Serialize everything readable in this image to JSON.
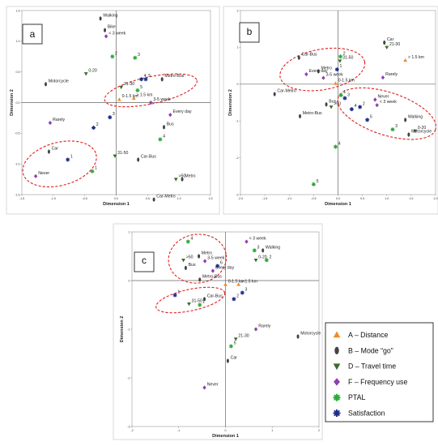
{
  "chart_data": [
    {
      "type": "scatter",
      "panel_label": "a",
      "xlabel": "Dimension 1",
      "ylabel": "Dimension 2",
      "xlim": [
        -1.5,
        1.5
      ],
      "ylim": [
        -1.5,
        1.5
      ],
      "xticks": [
        -1.5,
        -1.0,
        -0.5,
        0.0,
        0.5,
        1.0,
        1.5
      ],
      "xtick_labels": [
        "-1.5",
        "-1.0",
        "-0.5",
        "0.0",
        "0.5",
        "1.0",
        "1.5"
      ],
      "yticks": [
        -1.5,
        -1.0,
        -0.5,
        0.0,
        0.5,
        1.0,
        1.5
      ],
      "ytick_labels": [
        "-1.5",
        "-1.0",
        "-0.5",
        "0.0",
        "0.5",
        "1.0",
        "1.5"
      ],
      "points": [
        {
          "label": "Walking",
          "cat": "B",
          "x": -0.25,
          "y": 1.37
        },
        {
          "label": "Bike",
          "cat": "B",
          "x": -0.18,
          "y": 1.18
        },
        {
          "label": "< 3 week",
          "cat": "F",
          "x": -0.16,
          "y": 1.08
        },
        {
          "label": "2",
          "cat": "P",
          "x": -0.06,
          "y": 0.75
        },
        {
          "label": "3",
          "cat": "P",
          "x": 0.3,
          "y": 0.73
        },
        {
          "label": "0-20",
          "cat": "D",
          "x": -0.48,
          "y": 0.47
        },
        {
          "label": "Motorcycle",
          "cat": "B",
          "x": -1.12,
          "y": 0.3
        },
        {
          "label": "21-30",
          "cat": "D",
          "x": 0.08,
          "y": 0.25
        },
        {
          "label": "4",
          "cat": "S",
          "x": 0.4,
          "y": 0.38
        },
        {
          "label": "5",
          "cat": "S",
          "x": 0.47,
          "y": 0.38
        },
        {
          "label": "5",
          "cat": "P",
          "x": 0.34,
          "y": 0.2
        },
        {
          "label": "Metro-Bus",
          "cat": "B",
          "x": 0.73,
          "y": 0.38
        },
        {
          "label": "0-1.5 km",
          "cat": "A",
          "x": 0.05,
          "y": 0.05
        },
        {
          "label": "> 1.5 km",
          "cat": "A",
          "x": 0.28,
          "y": 0.07
        },
        {
          "label": "3-5 week",
          "cat": "F",
          "x": 0.55,
          "y": 0.0
        },
        {
          "label": "Every day",
          "cat": "F",
          "x": 0.86,
          "y": -0.2
        },
        {
          "label": "Rarely",
          "cat": "F",
          "x": -1.05,
          "y": -0.33
        },
        {
          "label": "3",
          "cat": "S",
          "x": -0.1,
          "y": -0.24
        },
        {
          "label": "2",
          "cat": "S",
          "x": -0.36,
          "y": -0.41
        },
        {
          "label": "Bus",
          "cat": "B",
          "x": 0.76,
          "y": -0.4
        },
        {
          "label": "4",
          "cat": "P",
          "x": 0.7,
          "y": -0.6
        },
        {
          "label": "Car",
          "cat": "B",
          "x": -1.07,
          "y": -0.8
        },
        {
          "label": "1",
          "cat": "S",
          "x": -0.77,
          "y": -0.93
        },
        {
          "label": "1",
          "cat": "P",
          "x": -0.38,
          "y": -1.12
        },
        {
          "label": "Never",
          "cat": "F",
          "x": -1.28,
          "y": -1.2
        },
        {
          "label": "31-50",
          "cat": "D",
          "x": -0.02,
          "y": -0.87
        },
        {
          "label": "Car-Bus",
          "cat": "B",
          "x": 0.35,
          "y": -0.93
        },
        {
          "label": "Metro",
          "cat": "B",
          "x": 1.05,
          "y": -1.25
        },
        {
          "label": ">50",
          "cat": "D",
          "x": 0.95,
          "y": -1.25
        },
        {
          "label": "Car-Metro",
          "cat": "B",
          "x": 0.6,
          "y": -1.58
        }
      ],
      "ellipses": [
        {
          "cx": 0.55,
          "cy": 0.2,
          "rx": 0.75,
          "ry": 0.22,
          "angle": -12
        },
        {
          "cx": -0.9,
          "cy": -1.0,
          "rx": 0.6,
          "ry": 0.35,
          "angle": -15
        }
      ]
    },
    {
      "type": "scatter",
      "panel_label": "b",
      "xlabel": "Dimension 1",
      "ylabel": "Dimension 2",
      "xlim": [
        -2.0,
        2.0
      ],
      "ylim": [
        -3.0,
        2.0
      ],
      "xticks": [
        -2.0,
        -1.5,
        -1.0,
        -0.5,
        0.0,
        0.5,
        1.0,
        1.5,
        2.0
      ],
      "xtick_labels": [
        "-2.0",
        "-1.5",
        "-1.0",
        "-0.5",
        "0.0",
        "0.5",
        "1.0",
        "1.5",
        "2.0"
      ],
      "yticks": [
        -3,
        -2,
        -1,
        0,
        1,
        2
      ],
      "ytick_labels": [
        "-3",
        "-2",
        "-1",
        "0",
        "1",
        "2"
      ],
      "points": [
        {
          "label": "Car",
          "cat": "B",
          "x": 0.95,
          "y": 1.13
        },
        {
          "label": "21-30",
          "cat": "D",
          "x": 1.0,
          "y": 1.0
        },
        {
          "label": "> 1.5 km",
          "cat": "A",
          "x": 1.38,
          "y": 0.65
        },
        {
          "label": "2",
          "cat": "P",
          "x": 0.05,
          "y": 0.75
        },
        {
          "label": "Car-Bus",
          "cat": "B",
          "x": -0.8,
          "y": 0.72
        },
        {
          "label": "31-50",
          "cat": "D",
          "x": 0.04,
          "y": 0.63
        },
        {
          "label": "1",
          "cat": "S",
          "x": -0.02,
          "y": 0.4
        },
        {
          "label": "Metro",
          "cat": "B",
          "x": -0.4,
          "y": 0.35
        },
        {
          "label": "Every day",
          "cat": "F",
          "x": -0.65,
          "y": 0.27
        },
        {
          "label": "3-5 week",
          "cat": "F",
          "x": -0.3,
          "y": 0.17
        },
        {
          "label": "Rarely",
          "cat": "F",
          "x": 0.92,
          "y": 0.18
        },
        {
          "label": "0-1.5 km",
          "cat": "A",
          "x": -0.05,
          "y": 0.02
        },
        {
          "label": "Car-Metro",
          "cat": "B",
          "x": -1.3,
          "y": -0.27
        },
        {
          "label": "1",
          "cat": "P",
          "x": 0.06,
          "y": -0.3
        },
        {
          "label": "3",
          "cat": "S",
          "x": 0.14,
          "y": -0.38
        },
        {
          "label": "Never",
          "cat": "F",
          "x": 0.76,
          "y": -0.42
        },
        {
          "label": "Bus",
          "cat": "B",
          "x": -0.24,
          "y": -0.55
        },
        {
          "label": ">50",
          "cat": "D",
          "x": -0.14,
          "y": -0.62
        },
        {
          "label": "< 3 week",
          "cat": "F",
          "x": 0.8,
          "y": -0.57
        },
        {
          "label": "2",
          "cat": "S",
          "x": 0.45,
          "y": -0.62
        },
        {
          "label": "4",
          "cat": "S",
          "x": 0.28,
          "y": -0.68
        },
        {
          "label": "Metro-Bus",
          "cat": "B",
          "x": -0.78,
          "y": -0.87
        },
        {
          "label": "5",
          "cat": "S",
          "x": 0.6,
          "y": -0.97
        },
        {
          "label": "Walking",
          "cat": "B",
          "x": 1.38,
          "y": -0.97
        },
        {
          "label": "3",
          "cat": "P",
          "x": 1.12,
          "y": -1.23
        },
        {
          "label": "0-20",
          "cat": "D",
          "x": 1.58,
          "y": -1.27
        },
        {
          "label": "Motorcycle",
          "cat": "B",
          "x": 1.45,
          "y": -1.37
        },
        {
          "label": "4",
          "cat": "P",
          "x": -0.05,
          "y": -1.7
        },
        {
          "label": "5",
          "cat": "P",
          "x": -0.5,
          "y": -2.72
        }
      ],
      "ellipses": [
        {
          "cx": -0.32,
          "cy": 0.4,
          "rx": 0.88,
          "ry": 0.55,
          "angle": -10
        },
        {
          "cx": 1.0,
          "cy": -0.8,
          "rx": 1.05,
          "ry": 0.58,
          "angle": 18
        }
      ]
    },
    {
      "type": "scatter",
      "panel_label": "c",
      "xlabel": "Dimension 1",
      "ylabel": "Dimension 2",
      "xlim": [
        -2,
        2
      ],
      "ylim": [
        -3,
        1
      ],
      "xticks": [
        -2,
        -1,
        0,
        1,
        2
      ],
      "xtick_labels": [
        "-2",
        "-1",
        "0",
        "1",
        "2"
      ],
      "yticks": [
        -3,
        -2,
        -1,
        0,
        1
      ],
      "ytick_labels": [
        "-3",
        "-2",
        "-1",
        "0",
        "1"
      ],
      "points": [
        {
          "label": "4",
          "cat": "P",
          "x": -0.8,
          "y": 0.8
        },
        {
          "label": "< 3 week",
          "cat": "F",
          "x": 0.45,
          "y": 0.8
        },
        {
          "label": "3",
          "cat": "P",
          "x": 0.62,
          "y": 0.62
        },
        {
          "label": "Walking",
          "cat": "B",
          "x": 0.8,
          "y": 0.62
        },
        {
          "label": "Metro",
          "cat": "B",
          "x": -0.57,
          "y": 0.5
        },
        {
          "label": ">50",
          "cat": "D",
          "x": -0.9,
          "y": 0.42
        },
        {
          "label": "3-5 week",
          "cat": "F",
          "x": -0.44,
          "y": 0.4
        },
        {
          "label": "0-20",
          "cat": "D",
          "x": 0.65,
          "y": 0.42
        },
        {
          "label": "2",
          "cat": "P",
          "x": 0.88,
          "y": 0.42
        },
        {
          "label": "6",
          "cat": "S",
          "x": -0.17,
          "y": 0.3
        },
        {
          "label": "Bus",
          "cat": "B",
          "x": -0.85,
          "y": 0.26
        },
        {
          "label": "Every day",
          "cat": "F",
          "x": -0.27,
          "y": 0.2
        },
        {
          "label": "Metro-Bus",
          "cat": "B",
          "x": -0.55,
          "y": 0.02
        },
        {
          "label": "0-1.5 km",
          "cat": "A",
          "x": 0.0,
          "y": -0.08
        },
        {
          "label": "> 1.5 km",
          "cat": "A",
          "x": 0.28,
          "y": -0.08
        },
        {
          "label": "1",
          "cat": "S",
          "x": -1.08,
          "y": -0.3
        },
        {
          "label": "Car-Bus",
          "cat": "B",
          "x": -0.45,
          "y": -0.38
        },
        {
          "label": "1",
          "cat": "P",
          "x": -0.55,
          "y": -0.5
        },
        {
          "label": "31-50",
          "cat": "D",
          "x": -0.78,
          "y": -0.48
        },
        {
          "label": "2",
          "cat": "S",
          "x": 0.18,
          "y": -0.38
        },
        {
          "label": "3",
          "cat": "S",
          "x": 0.36,
          "y": -0.25
        },
        {
          "label": "Rarely",
          "cat": "F",
          "x": 0.65,
          "y": -1.0
        },
        {
          "label": "Motorcycle",
          "cat": "B",
          "x": 1.55,
          "y": -1.15
        },
        {
          "label": "21-30",
          "cat": "D",
          "x": 0.22,
          "y": -1.2
        },
        {
          "label": "5",
          "cat": "P",
          "x": 0.12,
          "y": -1.35
        },
        {
          "label": "Car",
          "cat": "B",
          "x": 0.05,
          "y": -1.65
        },
        {
          "label": "Never",
          "cat": "F",
          "x": -0.45,
          "y": -2.2
        }
      ],
      "ellipses": [
        {
          "cx": -0.6,
          "cy": 0.45,
          "rx": 0.62,
          "ry": 0.5,
          "angle": -8
        },
        {
          "cx": -0.75,
          "cy": -0.4,
          "rx": 0.75,
          "ry": 0.22,
          "angle": -12
        }
      ]
    }
  ],
  "legend": {
    "items": [
      {
        "cat": "A",
        "label": "A – Distance",
        "color": "#f28c28",
        "shape": "triangle-up"
      },
      {
        "cat": "B",
        "label": "B – Mode “go”",
        "color": "#444444",
        "shape": "ellipse"
      },
      {
        "cat": "D",
        "label": "D – Travel time",
        "color": "#3d6b2e",
        "shape": "triangle-down"
      },
      {
        "cat": "F",
        "label": "F – Frequency use",
        "color": "#8e3fae",
        "shape": "diamond"
      },
      {
        "cat": "P",
        "label": "PTAL",
        "color": "#2eaa3c",
        "shape": "asterisk"
      },
      {
        "cat": "S",
        "label": "Satisfaction",
        "color": "#1c2f8a",
        "shape": "asterisk"
      }
    ]
  }
}
